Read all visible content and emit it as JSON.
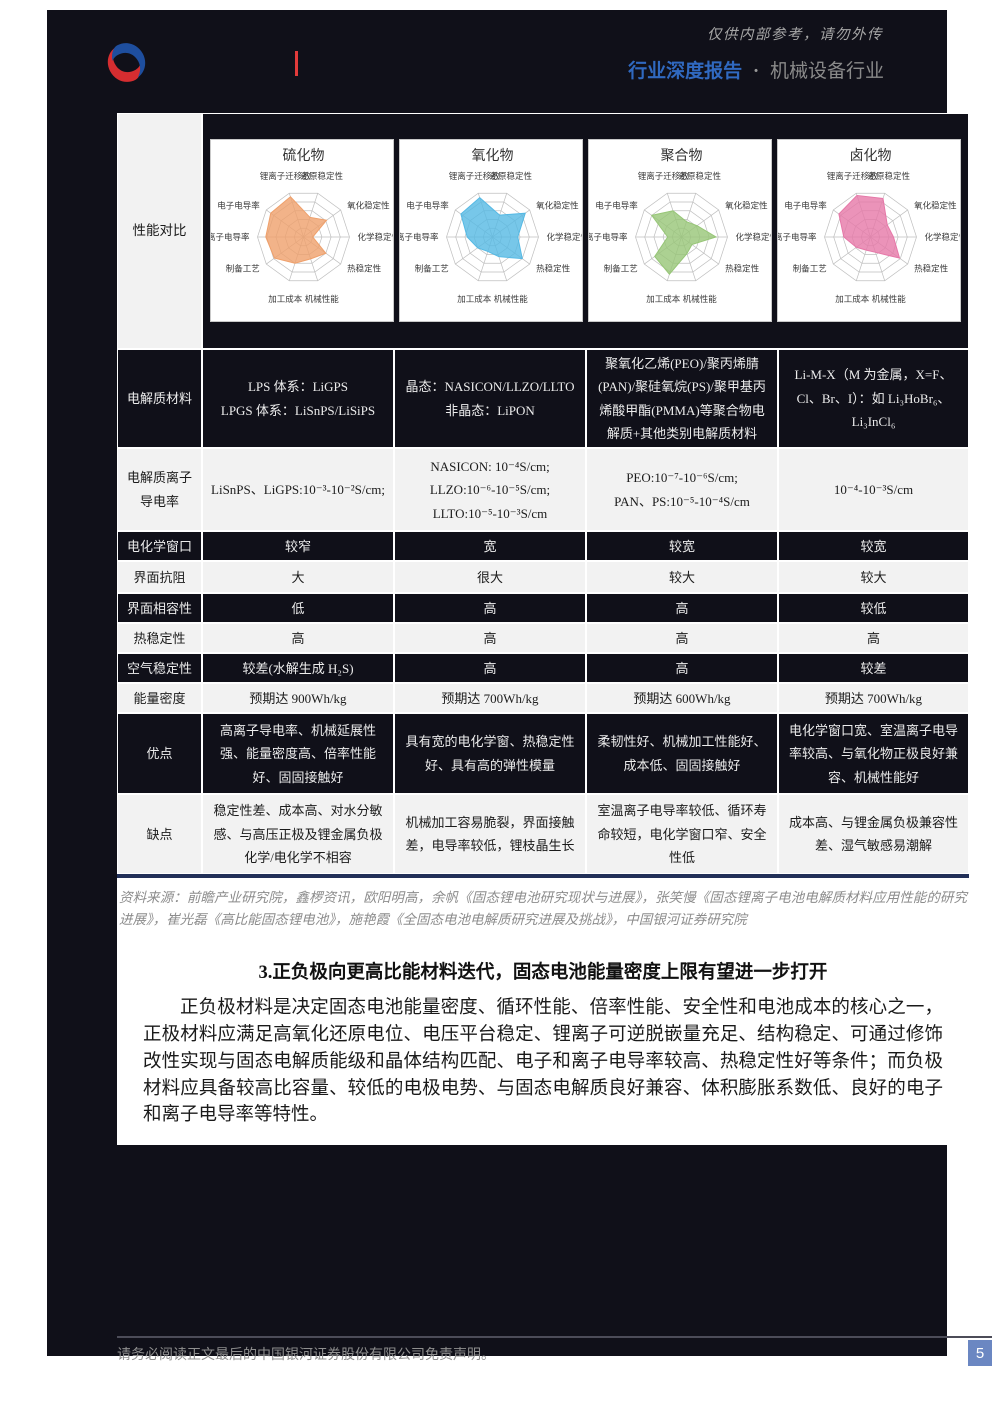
{
  "header": {
    "watermark": "仅供内部参考，请勿外传",
    "report_type": "行业深度报告",
    "separator": "·",
    "industry": "机械设备行业"
  },
  "table": {
    "performance_row_label": "性能对比",
    "columns": [
      "硫化物",
      "氧化物",
      "聚合物",
      "卤化物"
    ],
    "rows": [
      {
        "label": "电解质材料",
        "shade": "dark",
        "cells": [
          "LPS 体系：LiGPS\nLPGS 体系：LiSnPS/LiSiPS",
          "晶态：NASICON/LLZO/LLTO\n非晶态：LiPON",
          "聚氧化乙烯(PEO)/聚丙烯腈(PAN)/聚硅氧烷(PS)/聚甲基丙烯酸甲酯(PMMA)等聚合物电解质+其他类别电解质材料",
          "Li-M-X（M 为金属，X=F、Cl、Br、I）：如 Li₃HoBr₆、Li₃InCl₆"
        ]
      },
      {
        "label": "电解质离子导电率",
        "shade": "light",
        "cells": [
          "LiSnPS、LiGPS:10⁻³-10⁻²S/cm;",
          "NASICON: 10⁻⁴S/cm;\nLLZO:10⁻⁶-10⁻⁵S/cm;\nLLTO:10⁻⁵-10⁻³S/cm",
          "PEO:10⁻⁷-10⁻⁶S/cm;\nPAN、PS:10⁻⁵-10⁻⁴S/cm",
          "10⁻⁴-10⁻³S/cm"
        ]
      },
      {
        "label": "电化学窗口",
        "shade": "dark",
        "cells": [
          "较窄",
          "宽",
          "较宽",
          "较宽"
        ]
      },
      {
        "label": "界面抗阻",
        "shade": "light",
        "cells": [
          "大",
          "很大",
          "较大",
          "较大"
        ]
      },
      {
        "label": "界面相容性",
        "shade": "dark",
        "cells": [
          "低",
          "高",
          "高",
          "较低"
        ]
      },
      {
        "label": "热稳定性",
        "shade": "light",
        "cells": [
          "高",
          "高",
          "高",
          "高"
        ]
      },
      {
        "label": "空气稳定性",
        "shade": "dark",
        "cells": [
          "较差(水解生成 H₂S)",
          "高",
          "高",
          "较差"
        ]
      },
      {
        "label": "能量密度",
        "shade": "light",
        "cells": [
          "预期达 900Wh/kg",
          "预期达 700Wh/kg",
          "预期达 600Wh/kg",
          "预期达 700Wh/kg"
        ]
      },
      {
        "label": "优点",
        "shade": "dark",
        "cells": [
          "高离子导电率、机械延展性强、能量密度高、倍率性能好、固固接触好",
          "具有宽的电化学窗、热稳定性好、具有高的弹性模量",
          "柔韧性好、机械加工性能好、成本低、固固接触好",
          "电化学窗口宽、室温离子电导率较高、与氧化物正极良好兼容、机械性能好"
        ]
      },
      {
        "label": "缺点",
        "shade": "light",
        "cells": [
          "稳定性差、成本高、对水分敏感、与高压正极及锂金属负极化学/电化学不相容",
          "机械加工容易脆裂，界面接触差，电导率较低，锂枝晶生长",
          "室温离子电导率较低、循环寿命较短，电化学窗口窄、安全性低",
          "成本高、与锂金属负极兼容性差、湿气敏感易潮解"
        ]
      }
    ]
  },
  "chart_data": [
    {
      "type": "radar",
      "title": "硫化物",
      "fill": "#EFA06B",
      "axes": [
        "锂离子迁移数",
        "还原稳定性",
        "氧化稳定性",
        "化学稳定性",
        "热稳定性",
        "机械性能",
        "加工成本",
        "制备工艺",
        "离子电导率",
        "电子电导率"
      ],
      "values": [
        0.92,
        0.45,
        0.62,
        0.2,
        0.6,
        0.5,
        0.6,
        0.78,
        0.82,
        0.88
      ],
      "value_range": [
        0,
        1
      ],
      "grid": true,
      "legend": "none"
    },
    {
      "type": "radar",
      "title": "氧化物",
      "fill": "#55B9E4",
      "axes": [
        "锂离子迁移数",
        "还原稳定性",
        "氧化稳定性",
        "化学稳定性",
        "热稳定性",
        "机械性能",
        "加工成本",
        "制备工艺",
        "离子电导率",
        "电子电导率"
      ],
      "values": [
        0.9,
        0.5,
        0.88,
        0.55,
        0.8,
        0.45,
        0.33,
        0.4,
        0.55,
        0.85
      ],
      "value_range": [
        0,
        1
      ],
      "grid": true,
      "legend": "none"
    },
    {
      "type": "radar",
      "title": "聚合物",
      "fill": "#97C677",
      "axes": [
        "锂离子迁移数",
        "还原稳定性",
        "氧化稳定性",
        "化学稳定性",
        "热稳定性",
        "机械性能",
        "加工成本",
        "制备工艺",
        "离子电导率",
        "电子电导率"
      ],
      "values": [
        0.6,
        0.35,
        0.42,
        0.75,
        0.28,
        0.38,
        0.85,
        0.72,
        0.3,
        0.8
      ],
      "value_range": [
        0,
        1
      ],
      "grid": true,
      "legend": "none"
    },
    {
      "type": "radar",
      "title": "卤化物",
      "fill": "#E678A8",
      "axes": [
        "锂离子迁移数",
        "还原稳定性",
        "氧化稳定性",
        "化学稳定性",
        "热稳定性",
        "机械性能",
        "加工成本",
        "制备工艺",
        "离子电导率",
        "电子电导率"
      ],
      "values": [
        0.95,
        0.88,
        0.45,
        0.5,
        0.78,
        0.35,
        0.3,
        0.38,
        0.58,
        0.85
      ],
      "value_range": [
        0,
        1
      ],
      "grid": true,
      "legend": "none"
    }
  ],
  "source_note": "资料来源：前瞻产业研究院，鑫椤资讯，欧阳明高，余帆《固态锂电池研究现状与进展》，张笑慢《固态锂离子电池电解质材料应用性能的研究进展》，崔光磊《高比能固态锂电池》，施艳霞《全固态电池电解质研究进展及挑战》，中国银河证券研究院",
  "section": {
    "heading": "3.正负极向更高比能材料迭代，固态电池能量密度上限有望进一步打开",
    "paragraph": "正负极材料是决定固态电池能量密度、循环性能、倍率性能、安全性和电池成本的核心之一，正极材料应满足高氧化还原电位、电压平台稳定、锂离子可逆脱嵌量充足、结构稳定、可通过修饰改性实现与固态电解质能级和晶体结构匹配、电子和离子电导率较高、热稳定性好等条件；而负极材料应具备较高比容量、较低的电极电势、与固态电解质良好兼容、体积膨胀系数低、良好的电子和离子电导率等特性。"
  },
  "footer": {
    "disclaimer": "请务必阅读正文最后的中国银河证券股份有限公司免责声明。",
    "page_number": "5"
  },
  "colors": {
    "page_dark": "#101019",
    "accent_blue": "#3069c0",
    "divider_red": "#e23b3b",
    "light_row": "#f2f2f2",
    "table_border_blue": "#223058",
    "page_number_box": "#6b87c2",
    "radar_fills": [
      "#EFA06B",
      "#55B9E4",
      "#97C677",
      "#E678A8"
    ]
  }
}
